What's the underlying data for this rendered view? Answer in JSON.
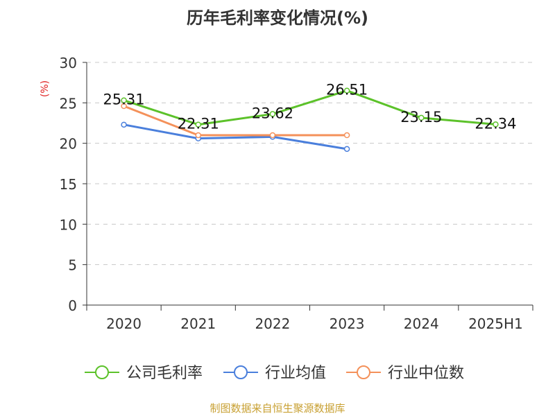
{
  "chart_data": {
    "type": "line",
    "title": "历年毛利率变化情况(%)",
    "ylabel": "(%)",
    "xlabel": "",
    "categories": [
      "2020",
      "2021",
      "2022",
      "2023",
      "2024",
      "2025H1"
    ],
    "ylim": [
      0,
      30
    ],
    "yticks": [
      0,
      5,
      10,
      15,
      20,
      25,
      30
    ],
    "grid": true,
    "legend_position": "bottom",
    "series": [
      {
        "name": "公司毛利率",
        "color": "#5cc22a",
        "values": [
          25.31,
          22.31,
          23.62,
          26.51,
          23.15,
          22.34
        ],
        "labels": [
          "25.31",
          "22.31",
          "23.62",
          "26.51",
          "23.15",
          "22.34"
        ]
      },
      {
        "name": "行业均值",
        "color": "#4a7fdc",
        "values": [
          22.3,
          20.6,
          20.8,
          19.3,
          null,
          null
        ]
      },
      {
        "name": "行业中位数",
        "color": "#f4915a",
        "values": [
          24.6,
          21.0,
          21.0,
          21.0,
          null,
          null
        ]
      }
    ],
    "source": "制图数据来自恒生聚源数据库"
  }
}
